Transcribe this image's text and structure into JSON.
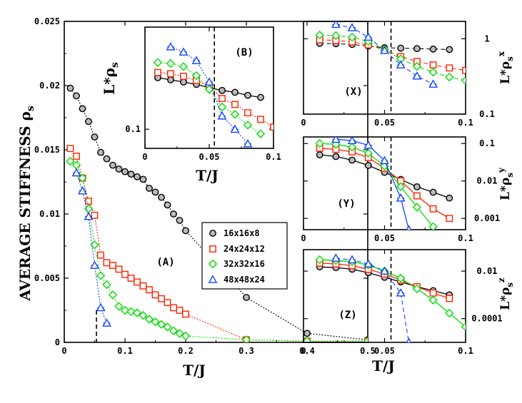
{
  "chart_data": [
    {
      "id": "A",
      "type": "scatter",
      "panel_label": "(A)",
      "xlabel": "T/J",
      "ylabel": "AVERAGE STIFFNESS ρs",
      "ylabel_main": "AVERAGE STIFFNESS ρ",
      "ylabel_sub": "s",
      "xlim": [
        0,
        0.5
      ],
      "ylim": [
        0,
        0.025
      ],
      "xticks": [
        "0",
        "0.1",
        "0.2",
        "0.3",
        "0.4",
        "0.5"
      ],
      "yticks": [
        "0",
        "0.005",
        "0.01",
        "0.015",
        "0.02",
        "0.025"
      ],
      "critical_x": 0.053,
      "legend": [
        "16x16x8",
        "24x24x12",
        "32x32x16",
        "48x48x24"
      ],
      "series": [
        {
          "name": "16x16x8",
          "color": "#000000",
          "marker": "circle",
          "style": "dotted",
          "x": [
            0.01,
            0.02,
            0.03,
            0.04,
            0.05,
            0.06,
            0.07,
            0.08,
            0.09,
            0.1,
            0.11,
            0.12,
            0.13,
            0.14,
            0.15,
            0.16,
            0.17,
            0.18,
            0.19,
            0.2,
            0.3,
            0.4,
            0.5
          ],
          "y": [
            0.0198,
            0.0192,
            0.0182,
            0.0172,
            0.016,
            0.0148,
            0.0143,
            0.0138,
            0.0135,
            0.0133,
            0.0131,
            0.0129,
            0.0127,
            0.012,
            0.0117,
            0.0113,
            0.0107,
            0.01,
            0.0095,
            0.0087,
            0.0035,
            0.0007,
            0.0002
          ]
        },
        {
          "name": "24x24x12",
          "color": "#ff2200",
          "marker": "square",
          "style": "dotted",
          "x": [
            0.01,
            0.02,
            0.03,
            0.04,
            0.05,
            0.06,
            0.07,
            0.08,
            0.09,
            0.1,
            0.11,
            0.12,
            0.13,
            0.14,
            0.15,
            0.16,
            0.17,
            0.18,
            0.19,
            0.2,
            0.3,
            0.4,
            0.5
          ],
          "y": [
            0.0151,
            0.0145,
            0.0128,
            0.011,
            0.0099,
            0.0068,
            0.0062,
            0.006,
            0.0057,
            0.0053,
            0.005,
            0.0047,
            0.0044,
            0.0041,
            0.0037,
            0.0034,
            0.0031,
            0.0027,
            0.0025,
            0.0022,
            0.0002,
            0.0001,
            0.0001
          ]
        },
        {
          "name": "32x32x16",
          "color": "#00dd00",
          "marker": "diamond",
          "style": "dotted",
          "x": [
            0.01,
            0.02,
            0.03,
            0.04,
            0.05,
            0.06,
            0.07,
            0.08,
            0.09,
            0.1,
            0.11,
            0.12,
            0.13,
            0.14,
            0.15,
            0.16,
            0.17,
            0.18,
            0.19,
            0.2,
            0.3,
            0.4,
            0.5
          ],
          "y": [
            0.0141,
            0.0138,
            0.0128,
            0.0104,
            0.0076,
            0.0052,
            0.0045,
            0.0037,
            0.0028,
            0.0025,
            0.0024,
            0.0023,
            0.0021,
            0.0018,
            0.0016,
            0.0014,
            0.0012,
            0.0009,
            0.0007,
            0.0005,
            0.0002,
            0.0001,
            0.0001
          ]
        },
        {
          "name": "48x48x24",
          "color": "#1144ff",
          "marker": "triangle",
          "style": "dotted",
          "x": [
            0.02,
            0.03,
            0.04,
            0.05,
            0.06,
            0.07
          ],
          "y": [
            0.0132,
            0.0118,
            0.0098,
            0.006,
            0.0027,
            0.0015
          ]
        }
      ]
    },
    {
      "id": "B",
      "type": "line",
      "panel_label": "(B)",
      "xlabel": "T/J",
      "ylabel": "L*ρs",
      "ylabel_main": "L*ρ",
      "ylabel_sub": "s",
      "xscale": "linear",
      "yscale": "log",
      "xlim": [
        0,
        0.1
      ],
      "ylim": [
        0.065,
        1.0
      ],
      "xticks": [
        "0",
        "0.05",
        "0.1"
      ],
      "yticks": [
        "0.1"
      ],
      "critical_x": 0.054,
      "series": [
        {
          "name": "16x16x8",
          "color": "#000000",
          "marker": "circle",
          "style": "solid",
          "x": [
            0.01,
            0.02,
            0.03,
            0.04,
            0.05,
            0.06,
            0.07,
            0.08,
            0.09
          ],
          "y": [
            0.32,
            0.305,
            0.29,
            0.275,
            0.255,
            0.24,
            0.23,
            0.215,
            0.205
          ]
        },
        {
          "name": "24x24x12",
          "color": "#ff2200",
          "marker": "square",
          "style": "dotted",
          "x": [
            0.01,
            0.02,
            0.03,
            0.04,
            0.05,
            0.06,
            0.07,
            0.08,
            0.09,
            0.1
          ],
          "y": [
            0.36,
            0.35,
            0.33,
            0.3,
            0.265,
            0.2,
            0.175,
            0.145,
            0.125,
            0.105
          ]
        },
        {
          "name": "32x32x16",
          "color": "#00dd00",
          "marker": "diamond",
          "style": "dotted",
          "x": [
            0.01,
            0.02,
            0.03,
            0.04,
            0.05,
            0.06,
            0.07,
            0.08,
            0.09
          ],
          "y": [
            0.45,
            0.44,
            0.41,
            0.335,
            0.245,
            0.165,
            0.14,
            0.11,
            0.09
          ]
        },
        {
          "name": "48x48x24",
          "color": "#1144ff",
          "marker": "triangle",
          "style": "dotted",
          "x": [
            0.02,
            0.03,
            0.04,
            0.05,
            0.06,
            0.07,
            0.08
          ],
          "y": [
            0.64,
            0.57,
            0.47,
            0.29,
            0.135,
            0.1,
            0.072
          ]
        }
      ]
    },
    {
      "id": "X",
      "type": "line",
      "panel_label": "(X)",
      "xlabel": "",
      "ylabel": "L*ρsx",
      "ylabel_main": "L*ρ",
      "ylabel_sub": "s",
      "ylabel_sup": "x",
      "yscale": "log",
      "xlim": [
        0,
        0.1
      ],
      "ylim": [
        0.1,
        1.7
      ],
      "xticks": [
        "0",
        "0.05",
        "0.1"
      ],
      "yticks": [
        "0.1",
        "1"
      ],
      "critical_x": 0.054,
      "series": [
        {
          "name": "16x16x8",
          "color": "#000000",
          "marker": "circle",
          "style": "dashed",
          "x": [
            0.01,
            0.02,
            0.03,
            0.04,
            0.05,
            0.06,
            0.07,
            0.08,
            0.09
          ],
          "y": [
            0.87,
            0.86,
            0.84,
            0.8,
            0.76,
            0.75,
            0.74,
            0.73,
            0.72
          ]
        },
        {
          "name": "24x24x12",
          "color": "#ff2200",
          "marker": "square",
          "style": "dashed",
          "x": [
            0.01,
            0.02,
            0.03,
            0.04,
            0.05,
            0.06,
            0.07,
            0.08,
            0.09,
            0.1
          ],
          "y": [
            0.97,
            0.95,
            0.91,
            0.83,
            0.71,
            0.58,
            0.5,
            0.45,
            0.41,
            0.38
          ]
        },
        {
          "name": "32x32x16",
          "color": "#00dd00",
          "marker": "diamond",
          "style": "dashed",
          "x": [
            0.01,
            0.02,
            0.03,
            0.04,
            0.05,
            0.06,
            0.07,
            0.08,
            0.09,
            0.1
          ],
          "y": [
            1.12,
            1.1,
            1.05,
            0.92,
            0.72,
            0.54,
            0.43,
            0.36,
            0.31,
            0.28
          ]
        },
        {
          "name": "48x48x24",
          "color": "#1144ff",
          "marker": "triangle",
          "style": "dashed",
          "x": [
            0.02,
            0.03,
            0.04,
            0.05,
            0.06,
            0.07,
            0.08
          ],
          "y": [
            1.55,
            1.4,
            1.05,
            0.7,
            0.45,
            0.32,
            0.25
          ]
        }
      ]
    },
    {
      "id": "Y",
      "type": "line",
      "panel_label": "(Y)",
      "xlabel": "",
      "ylabel": "L*ρsy",
      "ylabel_main": "L*ρ",
      "ylabel_sub": "s",
      "ylabel_sup": "y",
      "yscale": "log",
      "xlim": [
        0,
        0.1
      ],
      "ylim": [
        0.0005,
        0.15
      ],
      "xticks": [
        "0",
        "0.05",
        "0.1"
      ],
      "yticks": [
        "0.001",
        "0.01",
        "0.1"
      ],
      "critical_x": 0.054,
      "series": [
        {
          "name": "16x16x8",
          "color": "#000000",
          "marker": "circle",
          "style": "solid",
          "x": [
            0.01,
            0.02,
            0.03,
            0.04,
            0.05,
            0.06,
            0.07,
            0.08,
            0.09
          ],
          "y": [
            0.05,
            0.045,
            0.036,
            0.026,
            0.017,
            0.011,
            0.007,
            0.005,
            0.0035
          ]
        },
        {
          "name": "24x24x12",
          "color": "#ff2200",
          "marker": "square",
          "style": "solid",
          "x": [
            0.01,
            0.02,
            0.03,
            0.04,
            0.05,
            0.06,
            0.07,
            0.08,
            0.09
          ],
          "y": [
            0.075,
            0.07,
            0.06,
            0.042,
            0.022,
            0.01,
            0.004,
            0.0018,
            0.001
          ]
        },
        {
          "name": "32x32x16",
          "color": "#00dd00",
          "marker": "diamond",
          "style": "solid",
          "x": [
            0.01,
            0.02,
            0.03,
            0.04,
            0.05,
            0.06,
            0.07,
            0.08
          ],
          "y": [
            0.1,
            0.095,
            0.08,
            0.055,
            0.025,
            0.007,
            0.002,
            0.0006
          ]
        },
        {
          "name": "48x48x24",
          "color": "#1144ff",
          "marker": "triangle",
          "style": "solid",
          "x": [
            0.02,
            0.03,
            0.04,
            0.05,
            0.06,
            0.065
          ],
          "y": [
            0.13,
            0.12,
            0.09,
            0.035,
            0.0035,
            0.0005
          ]
        }
      ]
    },
    {
      "id": "Z",
      "type": "line",
      "panel_label": "(Z)",
      "xlabel": "T/J",
      "ylabel": "L*ρsz",
      "ylabel_main": "L*ρ",
      "ylabel_sub": "s",
      "ylabel_sup": "z",
      "yscale": "log",
      "xlim": [
        0,
        0.1
      ],
      "ylim": [
        1e-05,
        0.08
      ],
      "xticks": [
        "0",
        "0.05",
        "0.1"
      ],
      "yticks": [
        "0.0001",
        "0.01"
      ],
      "critical_x": 0.054,
      "series": [
        {
          "name": "16x16x8",
          "color": "#000000",
          "marker": "circle",
          "style": "solid",
          "x": [
            0.01,
            0.02,
            0.03,
            0.04,
            0.05,
            0.06,
            0.07,
            0.08,
            0.09
          ],
          "y": [
            0.015,
            0.014,
            0.012,
            0.0085,
            0.0055,
            0.0035,
            0.0022,
            0.0015,
            0.001
          ]
        },
        {
          "name": "24x24x12",
          "color": "#ff2200",
          "marker": "square",
          "style": "solid",
          "x": [
            0.01,
            0.02,
            0.03,
            0.04,
            0.05,
            0.06,
            0.07,
            0.08,
            0.09
          ],
          "y": [
            0.022,
            0.02,
            0.017,
            0.012,
            0.0075,
            0.0042,
            0.0022,
            0.0012,
            0.0007
          ]
        },
        {
          "name": "32x32x16",
          "color": "#00dd00",
          "marker": "diamond",
          "style": "solid",
          "x": [
            0.01,
            0.02,
            0.03,
            0.04,
            0.05,
            0.06,
            0.07,
            0.08,
            0.09,
            0.1
          ],
          "y": [
            0.03,
            0.028,
            0.025,
            0.018,
            0.01,
            0.005,
            0.0018,
            0.0006,
            0.00017,
            4.5e-05
          ]
        },
        {
          "name": "48x48x24",
          "color": "#1144ff",
          "marker": "triangle",
          "style": "dashed",
          "x": [
            0.02,
            0.03,
            0.04,
            0.05,
            0.06,
            0.065
          ],
          "y": [
            0.035,
            0.03,
            0.02,
            0.01,
            0.0012,
            1e-05
          ]
        }
      ]
    }
  ]
}
